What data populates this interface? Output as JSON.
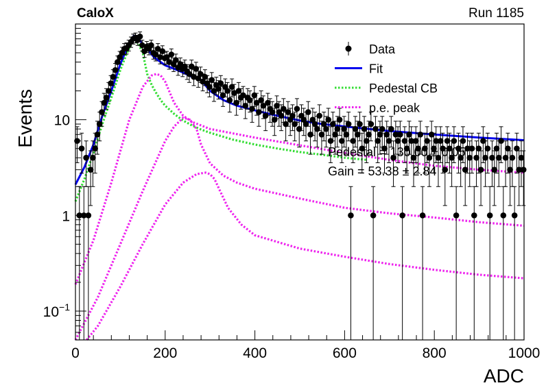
{
  "header": {
    "left": "CaloX",
    "right": "Run 1185"
  },
  "fit_results": {
    "pedestal_text": "Pedestal = 130.00 ± 0.05",
    "gain_text": "Gain = 53.38 ± 2.84"
  },
  "chart_data": {
    "type": "scatter",
    "title": "",
    "xlabel": "ADC",
    "ylabel": "Events",
    "xlim": [
      0,
      1000
    ],
    "ylim": [
      0.05,
      100
    ],
    "y_scale": "log",
    "x_ticks": [
      0,
      200,
      400,
      600,
      800,
      1000
    ],
    "y_ticks": [
      {
        "value": 0.1,
        "base": "10",
        "exp": "−1"
      },
      {
        "value": 1,
        "label": "1"
      },
      {
        "value": 10,
        "label": "10"
      }
    ],
    "legend": {
      "placement": "top-right",
      "entries": [
        {
          "label": "Data",
          "style": "marker-errorbar",
          "color": "#000000"
        },
        {
          "label": "Fit",
          "style": "solid",
          "color": "#0000ee"
        },
        {
          "label": "Pedestal CB",
          "style": "dotted",
          "color": "#33dd33"
        },
        {
          "label": "p.e. peak",
          "style": "dotted",
          "color": "#ee22ee"
        }
      ]
    },
    "series": [
      {
        "name": "Data",
        "kind": "points",
        "color": "#000000",
        "x": [
          0,
          5,
          10,
          15,
          20,
          25,
          30,
          35,
          40,
          45,
          50,
          55,
          60,
          65,
          70,
          75,
          80,
          85,
          90,
          95,
          100,
          105,
          110,
          115,
          120,
          125,
          130,
          135,
          140,
          145,
          150,
          155,
          160,
          165,
          170,
          175,
          180,
          185,
          190,
          195,
          200,
          205,
          210,
          215,
          220,
          225,
          230,
          235,
          240,
          245,
          250,
          255,
          260,
          265,
          270,
          275,
          280,
          285,
          290,
          295,
          300,
          305,
          310,
          315,
          320,
          325,
          330,
          335,
          340,
          345,
          350,
          355,
          360,
          365,
          370,
          375,
          380,
          385,
          390,
          395,
          400,
          405,
          410,
          415,
          420,
          425,
          430,
          435,
          440,
          445,
          450,
          455,
          460,
          465,
          470,
          475,
          480,
          485,
          490,
          495,
          500,
          505,
          510,
          515,
          520,
          525,
          530,
          535,
          540,
          545,
          550,
          555,
          560,
          565,
          570,
          575,
          580,
          585,
          590,
          595,
          600,
          605,
          610,
          615,
          620,
          625,
          630,
          635,
          640,
          645,
          650,
          655,
          660,
          665,
          670,
          675,
          680,
          685,
          690,
          695,
          700,
          705,
          710,
          715,
          720,
          725,
          730,
          735,
          740,
          745,
          750,
          755,
          760,
          765,
          770,
          775,
          780,
          785,
          790,
          795,
          800,
          805,
          810,
          815,
          820,
          825,
          830,
          835,
          840,
          845,
          850,
          855,
          860,
          865,
          870,
          875,
          880,
          885,
          890,
          895,
          900,
          905,
          910,
          915,
          920,
          925,
          930,
          935,
          940,
          945,
          950,
          955,
          960,
          965,
          970,
          975,
          980,
          985,
          990,
          995
        ],
        "y": [
          6,
          1,
          5,
          1,
          4,
          1,
          3,
          4,
          5,
          7,
          9,
          12,
          15,
          17,
          20,
          24,
          28,
          33,
          40,
          45,
          50,
          55,
          56,
          60,
          65,
          70,
          72,
          68,
          74,
          60,
          52,
          58,
          55,
          60,
          50,
          48,
          55,
          45,
          52,
          44,
          45,
          40,
          48,
          38,
          42,
          35,
          38,
          34,
          36,
          32,
          30,
          36,
          28,
          34,
          27,
          30,
          25,
          28,
          24,
          22,
          26,
          20,
          23,
          21,
          24,
          18,
          22,
          20,
          16,
          22,
          19,
          15,
          20,
          17,
          18,
          14,
          17,
          16,
          13,
          18,
          15,
          12,
          16,
          14,
          11,
          15,
          13,
          12,
          10,
          14,
          12,
          11,
          13,
          9,
          12,
          10,
          11,
          9,
          13,
          8,
          11,
          10,
          9,
          12,
          7,
          10,
          9,
          8,
          11,
          7,
          9,
          8,
          10,
          6,
          9,
          7,
          8,
          10,
          6,
          8,
          7,
          9,
          1,
          6,
          8,
          7,
          9,
          5,
          8,
          6,
          7,
          9,
          1,
          8,
          6,
          7,
          8,
          5,
          7,
          6,
          8,
          4,
          7,
          6,
          7,
          1,
          6,
          5,
          7,
          6,
          4,
          6,
          5,
          7,
          1,
          5,
          6,
          4,
          7,
          5,
          6,
          4,
          6,
          5,
          3,
          6,
          5,
          4,
          6,
          1,
          5,
          4,
          6,
          3,
          5,
          4,
          5,
          1,
          4,
          5,
          3,
          6,
          4,
          5,
          1,
          4,
          3,
          5,
          4,
          6,
          1,
          4,
          5,
          3,
          4,
          1,
          5,
          3,
          4,
          3
        ],
        "yerr_rel": 0.5
      },
      {
        "name": "Fit",
        "kind": "line",
        "style": "solid",
        "color": "#0000ee",
        "x": [
          0,
          20,
          40,
          60,
          80,
          100,
          115,
          130,
          145,
          160,
          175,
          190,
          200,
          220,
          240,
          260,
          280,
          300,
          330,
          360,
          400,
          450,
          500,
          550,
          600,
          700,
          800,
          900,
          1000
        ],
        "y": [
          2.1,
          3.2,
          5.5,
          11,
          20,
          38,
          56,
          75,
          66,
          55,
          45,
          40,
          37,
          34,
          31,
          28,
          26,
          20,
          16,
          14,
          12.5,
          11,
          9.8,
          9,
          8.5,
          7.6,
          7,
          6.5,
          6.1
        ]
      },
      {
        "name": "Pedestal CB",
        "kind": "line",
        "style": "dotted",
        "color": "#33dd33",
        "x": [
          0,
          20,
          40,
          60,
          80,
          100,
          115,
          130,
          140,
          150,
          160,
          170,
          180,
          190,
          200,
          220,
          240,
          260,
          280,
          300,
          350,
          400,
          450,
          500,
          550,
          600,
          650
        ],
        "y": [
          1.4,
          2.4,
          4.5,
          9,
          17,
          33,
          50,
          68,
          62,
          50,
          30,
          23,
          19,
          16,
          14,
          11.5,
          9.8,
          8.7,
          7.9,
          7.3,
          6.2,
          5.5,
          5,
          4.6,
          4.3,
          4,
          3.8
        ]
      },
      {
        "name": "p.e. peak",
        "kind": "line",
        "style": "dotted",
        "color": "#ee22ee",
        "x": [
          0,
          40,
          80,
          120,
          150,
          170,
          180,
          190,
          200,
          220,
          240,
          260,
          300,
          400,
          500,
          600,
          700,
          800,
          900,
          1000
        ],
        "y": [
          0.19,
          0.55,
          2.2,
          10,
          22,
          29,
          30,
          29,
          25,
          15,
          11,
          9.5,
          8,
          6.5,
          5.4,
          4.5,
          3.8,
          3.3,
          3,
          2.8
        ]
      },
      {
        "name": "p.e. peak",
        "kind": "line",
        "style": "dotted",
        "color": "#ee22ee",
        "x": [
          0,
          50,
          100,
          150,
          200,
          220,
          240,
          255,
          270,
          280,
          300,
          330,
          360,
          400,
          500,
          600,
          700,
          800,
          900,
          1000
        ],
        "y": [
          0.05,
          0.14,
          0.5,
          1.8,
          6,
          8.5,
          10.5,
          10,
          8,
          5.5,
          3.5,
          2.6,
          2.2,
          1.9,
          1.5,
          1.2,
          1.05,
          0.95,
          0.85,
          0.78
        ]
      },
      {
        "name": "p.e. peak",
        "kind": "line",
        "style": "dotted",
        "color": "#ee22ee",
        "x": [
          25,
          50,
          100,
          150,
          200,
          240,
          270,
          290,
          300,
          310,
          320,
          340,
          370,
          400,
          500,
          600,
          700,
          800,
          900,
          1000
        ],
        "y": [
          0.05,
          0.07,
          0.18,
          0.5,
          1.3,
          2.2,
          2.7,
          2.8,
          2.7,
          2.4,
          1.9,
          1.2,
          0.8,
          0.62,
          0.45,
          0.37,
          0.31,
          0.27,
          0.24,
          0.22
        ]
      }
    ]
  }
}
